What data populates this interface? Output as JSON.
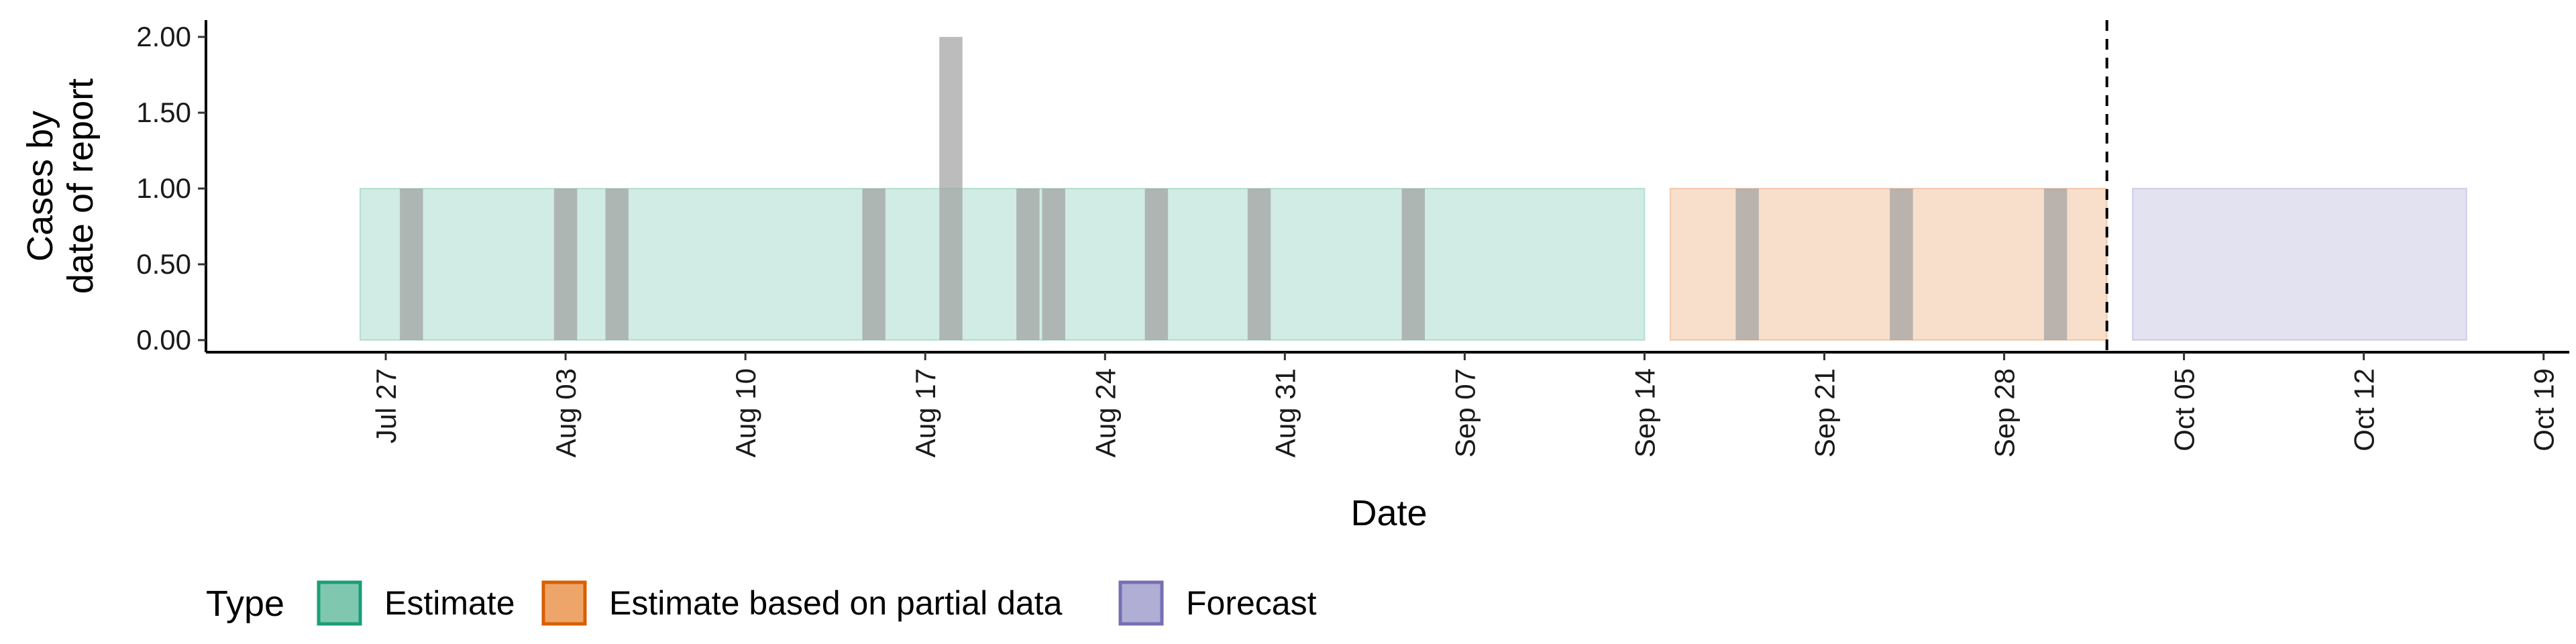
{
  "chart_data": {
    "type": "bar",
    "xlabel": "Date",
    "ylabel": [
      "Cases by",
      "date of report"
    ],
    "ylim": [
      0,
      2
    ],
    "y_ticks": [
      0,
      0.5,
      1,
      1.5,
      2
    ],
    "y_tick_labels": [
      "0.00",
      "0.50",
      "1.00",
      "1.50",
      "2.00"
    ],
    "xlim": [
      "2020-07-20",
      "2020-10-20"
    ],
    "x_ticks": [
      "2020-07-27",
      "2020-08-03",
      "2020-08-10",
      "2020-08-17",
      "2020-08-24",
      "2020-08-31",
      "2020-09-07",
      "2020-09-14",
      "2020-09-21",
      "2020-09-28",
      "2020-10-05",
      "2020-10-12",
      "2020-10-19"
    ],
    "x_tick_labels": [
      "Jul 27",
      "Aug 03",
      "Aug 10",
      "Aug 17",
      "Aug 24",
      "Aug 31",
      "Sep 07",
      "Sep 14",
      "Sep 21",
      "Sep 28",
      "Oct 05",
      "Oct 12",
      "Oct 19"
    ],
    "reported_cases": [
      {
        "date": "2020-07-28",
        "value": 1
      },
      {
        "date": "2020-08-03",
        "value": 1
      },
      {
        "date": "2020-08-05",
        "value": 1
      },
      {
        "date": "2020-08-15",
        "value": 1
      },
      {
        "date": "2020-08-18",
        "value": 2
      },
      {
        "date": "2020-08-21",
        "value": 1
      },
      {
        "date": "2020-08-22",
        "value": 1
      },
      {
        "date": "2020-08-26",
        "value": 1
      },
      {
        "date": "2020-08-30",
        "value": 1
      },
      {
        "date": "2020-09-05",
        "value": 1
      },
      {
        "date": "2020-09-18",
        "value": 1
      },
      {
        "date": "2020-09-24",
        "value": 1
      },
      {
        "date": "2020-09-30",
        "value": 1
      }
    ],
    "bands": [
      {
        "type": "Estimate",
        "start": "2020-07-26",
        "end": "2020-09-14",
        "lower": 0,
        "upper": 1
      },
      {
        "type": "Estimate based on partial data",
        "start": "2020-09-15",
        "end": "2020-10-02",
        "lower": 0,
        "upper": 1
      },
      {
        "type": "Forecast",
        "start": "2020-10-03",
        "end": "2020-10-16",
        "lower": 0,
        "upper": 1
      }
    ],
    "vline_date": "2020-10-02",
    "legend": {
      "title": "Type",
      "placement": "bottom",
      "items": [
        {
          "label": "Estimate",
          "fill": "#7fc8af",
          "stroke": "#1b9e77"
        },
        {
          "label": "Estimate based on partial data",
          "fill": "#eda569",
          "stroke": "#d95f02"
        },
        {
          "label": "Forecast",
          "fill": "#b0aed5",
          "stroke": "#7570b3"
        }
      ]
    },
    "colors": {
      "Estimate": "#1b9e77",
      "Estimate based on partial data": "#d95f02",
      "Forecast": "#7570b3",
      "bars": "#a0a0a0"
    },
    "grid": false
  }
}
